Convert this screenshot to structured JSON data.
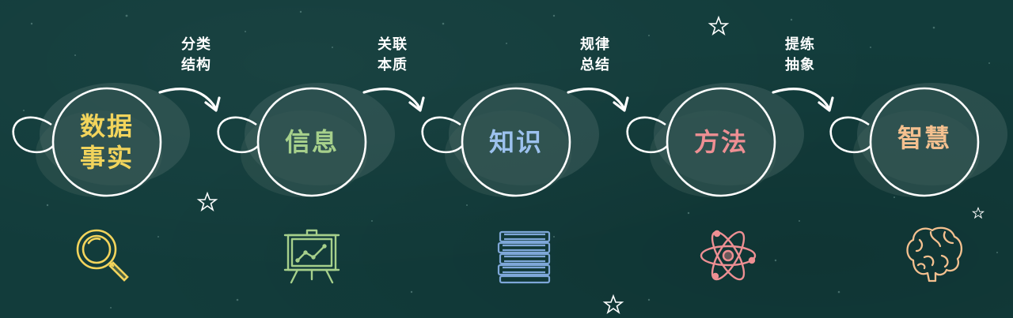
{
  "stages": [
    {
      "lines": [
        "数据",
        "事实"
      ],
      "color": "#f2d45c",
      "icon": "magnifier-icon"
    },
    {
      "lines": [
        "信息"
      ],
      "color": "#a6d08b",
      "icon": "presentation-board-icon"
    },
    {
      "lines": [
        "知识"
      ],
      "color": "#9cc1ee",
      "icon": "book-stack-icon"
    },
    {
      "lines": [
        "方法"
      ],
      "color": "#ee8f93",
      "icon": "atom-icon"
    },
    {
      "lines": [
        "智慧"
      ],
      "color": "#f4c08f",
      "icon": "brain-icon"
    }
  ],
  "transitions": [
    {
      "lines": [
        "分类",
        "结构"
      ]
    },
    {
      "lines": [
        "关联",
        "本质"
      ]
    },
    {
      "lines": [
        "规律",
        "总结"
      ]
    },
    {
      "lines": [
        "提练",
        "抽象"
      ]
    }
  ],
  "line_color": "#ffffff"
}
